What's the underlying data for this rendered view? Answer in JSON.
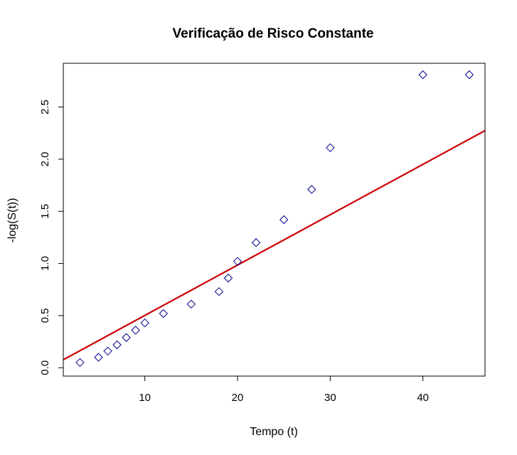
{
  "chart_data": {
    "type": "scatter",
    "title": "Verificação de Risco Constante",
    "xlabel": "Tempo (t)",
    "ylabel": "-log(S(t))",
    "xlim": [
      1.2,
      46.7
    ],
    "ylim": [
      -0.08,
      2.92
    ],
    "x_ticks": [
      10,
      20,
      30,
      40
    ],
    "y_ticks": [
      0.0,
      0.5,
      1.0,
      1.5,
      2.0,
      2.5
    ],
    "x_tick_labels": [
      "10",
      "20",
      "30",
      "40"
    ],
    "y_tick_labels": [
      "0.0",
      "0.5",
      "1.0",
      "1.5",
      "2.0",
      "2.5"
    ],
    "grid": false,
    "marker": "diamond",
    "marker_color": "#00008b",
    "line_color": "#cc0000",
    "points": {
      "x": [
        3,
        5,
        6,
        7,
        8,
        9,
        10,
        12,
        15,
        18,
        19,
        20,
        22,
        25,
        28,
        30,
        40,
        45
      ],
      "y": [
        0.05,
        0.1,
        0.16,
        0.22,
        0.29,
        0.36,
        0.43,
        0.52,
        0.61,
        0.73,
        0.86,
        1.02,
        1.2,
        1.42,
        1.71,
        2.11,
        2.81,
        2.81
      ]
    },
    "fit_line": {
      "intercept": 0.0186,
      "slope": 0.0483
    }
  }
}
